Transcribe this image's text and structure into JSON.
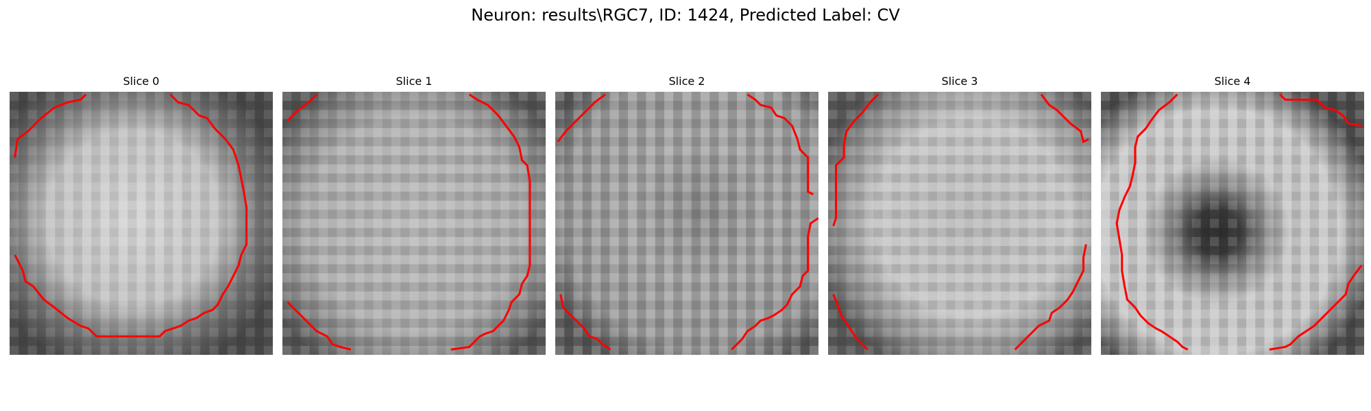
{
  "figure": {
    "title": "Neuron: results\\RGC7, ID: 1424, Predicted Label: CV"
  },
  "panels": [
    {
      "title": "Slice 0"
    },
    {
      "title": "Slice 1"
    },
    {
      "title": "Slice 2"
    },
    {
      "title": "Slice 3"
    },
    {
      "title": "Slice 4"
    }
  ],
  "colors": {
    "contour": "#ff0000",
    "background": "#ffffff"
  }
}
